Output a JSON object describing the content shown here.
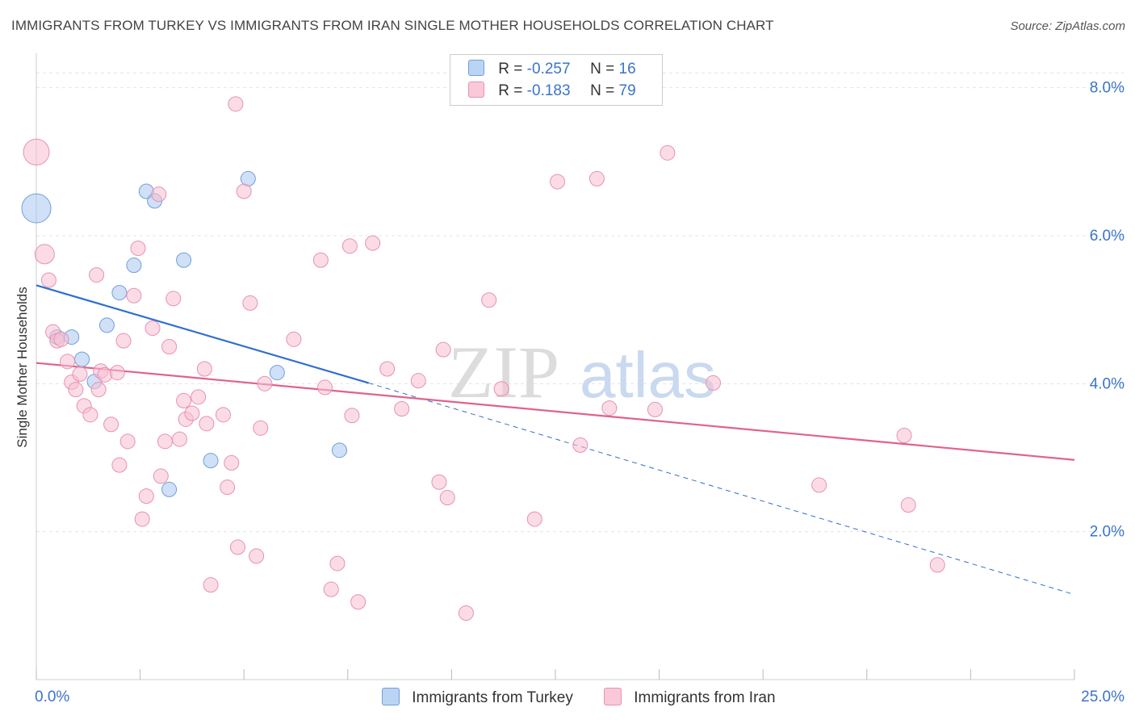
{
  "title": "IMMIGRANTS FROM TURKEY VS IMMIGRANTS FROM IRAN SINGLE MOTHER HOUSEHOLDS CORRELATION CHART",
  "source": "Source: ZipAtlas.com",
  "watermark": {
    "zip": "ZIP",
    "atlas": "atlas"
  },
  "legend": {
    "rows": [
      {
        "r_label": "R =",
        "r_value": "-0.257",
        "n_label": "N =",
        "n_value": "16"
      },
      {
        "r_label": "R =",
        "r_value": "-0.183",
        "n_label": "N =",
        "n_value": "79"
      }
    ]
  },
  "chart_data": {
    "type": "scatter",
    "title": "IMMIGRANTS FROM TURKEY VS IMMIGRANTS FROM IRAN SINGLE MOTHER HOUSEHOLDS CORRELATION CHART",
    "xlabel": "",
    "ylabel": "Single Mother Households",
    "xlim": [
      0,
      25
    ],
    "ylim": [
      0,
      8.4
    ],
    "x_tick_labels": [
      "0.0%",
      "25.0%"
    ],
    "y_ticks": [
      2,
      4,
      6,
      8
    ],
    "y_tick_labels": [
      "2.0%",
      "4.0%",
      "6.0%",
      "8.0%"
    ],
    "grid": true,
    "series": [
      {
        "name": "Immigrants from Turkey",
        "color": "#a9c7f0",
        "stroke": "#6f9fdb",
        "line_color": "#2e6fd0",
        "R": -0.257,
        "N": 16,
        "trend": {
          "x0": 0,
          "y0": 5.33,
          "x1": 8.0,
          "y1": 4.01,
          "dashed_to_x": 25,
          "dashed_to_y": 1.15
        },
        "points": [
          {
            "x": 0.0,
            "y": 6.37,
            "s": 18
          },
          {
            "x": 0.5,
            "y": 4.63
          },
          {
            "x": 0.85,
            "y": 4.63
          },
          {
            "x": 1.1,
            "y": 4.33
          },
          {
            "x": 1.4,
            "y": 4.03
          },
          {
            "x": 1.7,
            "y": 4.79
          },
          {
            "x": 2.0,
            "y": 5.23
          },
          {
            "x": 2.35,
            "y": 5.6
          },
          {
            "x": 2.65,
            "y": 6.6
          },
          {
            "x": 2.85,
            "y": 6.47
          },
          {
            "x": 3.2,
            "y": 2.57
          },
          {
            "x": 3.55,
            "y": 5.67
          },
          {
            "x": 4.2,
            "y": 2.96
          },
          {
            "x": 5.1,
            "y": 6.77
          },
          {
            "x": 5.8,
            "y": 4.15
          },
          {
            "x": 7.3,
            "y": 3.1
          }
        ]
      },
      {
        "name": "Immigrants from Iran",
        "color": "#f7bfd1",
        "stroke": "#e990ae",
        "line_color": "#e0628c",
        "R": -0.183,
        "N": 79,
        "trend": {
          "x0": 0,
          "y0": 4.28,
          "x1": 25,
          "y1": 2.97
        },
        "points": [
          {
            "x": 0.0,
            "y": 7.13,
            "s": 16
          },
          {
            "x": 0.2,
            "y": 5.75,
            "s": 12
          },
          {
            "x": 0.3,
            "y": 5.4
          },
          {
            "x": 0.4,
            "y": 4.7
          },
          {
            "x": 0.5,
            "y": 4.58
          },
          {
            "x": 0.6,
            "y": 4.6
          },
          {
            "x": 0.75,
            "y": 4.3
          },
          {
            "x": 0.85,
            "y": 4.02
          },
          {
            "x": 0.95,
            "y": 3.92
          },
          {
            "x": 1.05,
            "y": 4.13
          },
          {
            "x": 1.15,
            "y": 3.7
          },
          {
            "x": 1.3,
            "y": 3.58
          },
          {
            "x": 1.45,
            "y": 5.47
          },
          {
            "x": 1.5,
            "y": 3.92
          },
          {
            "x": 1.55,
            "y": 4.17
          },
          {
            "x": 1.65,
            "y": 4.12
          },
          {
            "x": 1.8,
            "y": 3.45
          },
          {
            "x": 1.95,
            "y": 4.15
          },
          {
            "x": 2.0,
            "y": 2.9
          },
          {
            "x": 2.1,
            "y": 4.58
          },
          {
            "x": 2.2,
            "y": 3.22
          },
          {
            "x": 2.35,
            "y": 5.19
          },
          {
            "x": 2.45,
            "y": 5.83
          },
          {
            "x": 2.55,
            "y": 2.17
          },
          {
            "x": 2.65,
            "y": 2.48
          },
          {
            "x": 2.8,
            "y": 4.75
          },
          {
            "x": 2.95,
            "y": 6.56
          },
          {
            "x": 3.0,
            "y": 2.75
          },
          {
            "x": 3.1,
            "y": 3.22
          },
          {
            "x": 3.2,
            "y": 4.5
          },
          {
            "x": 3.3,
            "y": 5.15
          },
          {
            "x": 3.45,
            "y": 3.25
          },
          {
            "x": 3.55,
            "y": 3.77
          },
          {
            "x": 3.6,
            "y": 3.52
          },
          {
            "x": 3.75,
            "y": 3.6
          },
          {
            "x": 3.9,
            "y": 3.82
          },
          {
            "x": 4.05,
            "y": 4.2
          },
          {
            "x": 4.1,
            "y": 3.46
          },
          {
            "x": 4.2,
            "y": 1.28
          },
          {
            "x": 4.5,
            "y": 3.58
          },
          {
            "x": 4.6,
            "y": 2.6
          },
          {
            "x": 4.7,
            "y": 2.93
          },
          {
            "x": 4.8,
            "y": 7.78
          },
          {
            "x": 4.85,
            "y": 1.79
          },
          {
            "x": 5.0,
            "y": 6.6
          },
          {
            "x": 5.15,
            "y": 5.09
          },
          {
            "x": 5.3,
            "y": 1.67
          },
          {
            "x": 5.4,
            "y": 3.4
          },
          {
            "x": 5.5,
            "y": 4.0
          },
          {
            "x": 6.2,
            "y": 4.6
          },
          {
            "x": 6.85,
            "y": 5.67
          },
          {
            "x": 6.95,
            "y": 3.95
          },
          {
            "x": 7.1,
            "y": 1.22
          },
          {
            "x": 7.25,
            "y": 1.57
          },
          {
            "x": 7.55,
            "y": 5.86
          },
          {
            "x": 7.6,
            "y": 3.57
          },
          {
            "x": 7.75,
            "y": 1.05
          },
          {
            "x": 8.1,
            "y": 5.9
          },
          {
            "x": 8.45,
            "y": 4.2
          },
          {
            "x": 8.8,
            "y": 3.66
          },
          {
            "x": 9.2,
            "y": 4.04
          },
          {
            "x": 9.7,
            "y": 2.67
          },
          {
            "x": 9.8,
            "y": 4.46
          },
          {
            "x": 9.9,
            "y": 2.46
          },
          {
            "x": 10.35,
            "y": 0.9
          },
          {
            "x": 10.9,
            "y": 5.13
          },
          {
            "x": 11.2,
            "y": 3.93
          },
          {
            "x": 12.0,
            "y": 2.17
          },
          {
            "x": 12.55,
            "y": 6.73
          },
          {
            "x": 13.1,
            "y": 3.17
          },
          {
            "x": 13.5,
            "y": 6.77
          },
          {
            "x": 13.8,
            "y": 3.67
          },
          {
            "x": 14.9,
            "y": 3.65
          },
          {
            "x": 15.2,
            "y": 7.12
          },
          {
            "x": 16.3,
            "y": 4.01
          },
          {
            "x": 18.85,
            "y": 2.63
          },
          {
            "x": 20.9,
            "y": 3.3
          },
          {
            "x": 21.0,
            "y": 2.36
          },
          {
            "x": 21.7,
            "y": 1.55
          }
        ]
      }
    ]
  }
}
